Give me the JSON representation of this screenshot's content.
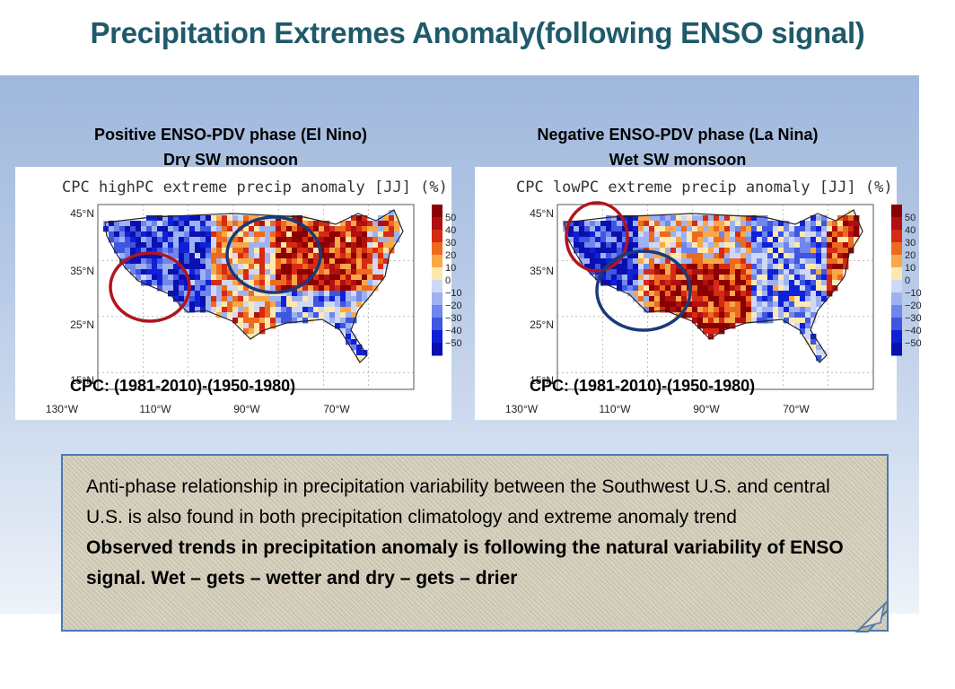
{
  "slide": {
    "title": "Precipitation Extremes Anomaly(following ENSO signal)"
  },
  "left_panel": {
    "title_line1": "Positive ENSO-PDV phase (El Nino)",
    "title_line2": "Dry SW monsoon",
    "map_title": "CPC highPC extreme precip anomaly [JJ] (%)",
    "caption": "CPC: (1981-2010)-(1950-1980)"
  },
  "right_panel": {
    "title_line1": "Negative ENSO-PDV phase (La Nina)",
    "title_line2": "Wet SW monsoon",
    "map_title": "CPC lowPC extreme precip anomaly [JJ] (%)",
    "caption": "CPC: (1981-2010)-(1950-1980)"
  },
  "map_axes": {
    "lat_labels": [
      "45°N",
      "35°N",
      "25°N",
      "15°N"
    ],
    "lon_labels": [
      "130°W",
      "110°W",
      "90°W",
      "70°W"
    ]
  },
  "colorbar": {
    "labels": [
      "50",
      "40",
      "30",
      "20",
      "10",
      "0",
      "−10",
      "−20",
      "−30",
      "−40",
      "−50"
    ],
    "colors": [
      "#8b0000",
      "#b01010",
      "#d62a14",
      "#ee6a1e",
      "#f7a84a",
      "#fde9b0",
      "#cfd8f5",
      "#9fb2f0",
      "#6f86ea",
      "#3f56e0",
      "#1020d8",
      "#0a10b0"
    ]
  },
  "note": {
    "text_regular": "Anti-phase relationship in precipitation variability between the Southwest U.S. and central U.S. is also found in both precipitation climatology and extreme anomaly trend",
    "text_bold": "Observed trends in precipitation anomaly is following the natural variability of ENSO signal. Wet – gets – wetter and dry – gets – drier"
  },
  "colors": {
    "title": "#1f5a6a",
    "circle_red": "#b01520",
    "circle_blue": "#1a3a78",
    "note_border": "#4a78b0"
  }
}
